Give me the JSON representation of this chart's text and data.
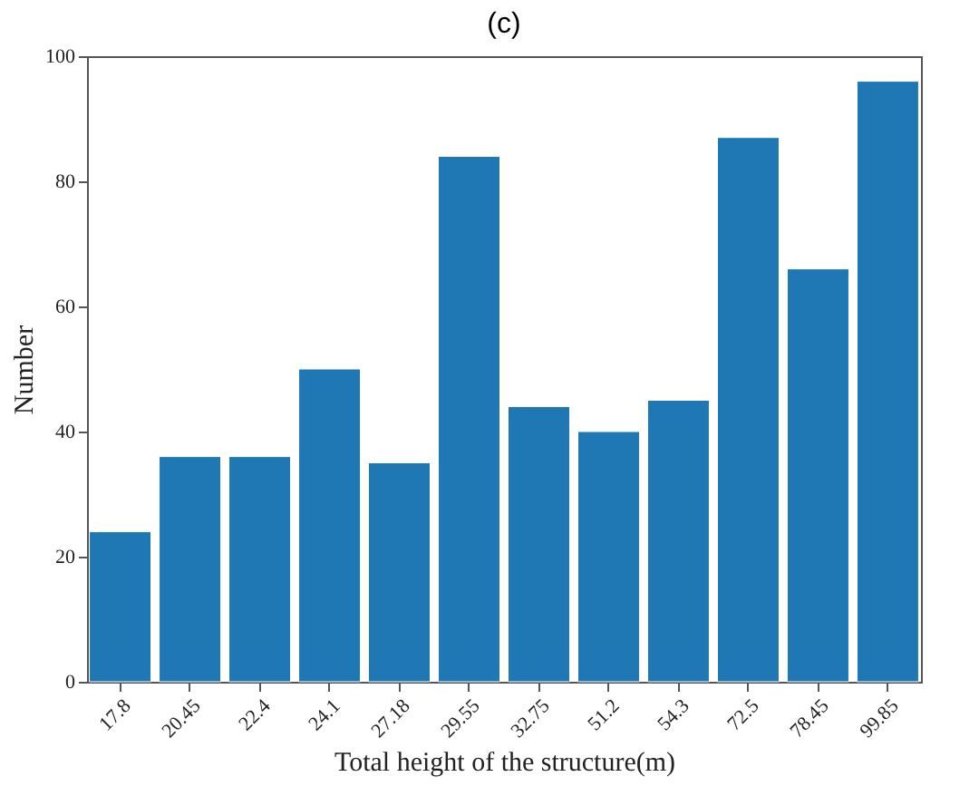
{
  "chart_data": {
    "type": "bar",
    "title": "(c)",
    "xlabel": "Total height of the structure(m)",
    "ylabel": "Number",
    "categories": [
      "17.8",
      "20.45",
      "22.4",
      "24.1",
      "27.18",
      "29.55",
      "32.75",
      "51.2",
      "54.3",
      "72.5",
      "78.45",
      "99.85"
    ],
    "values": [
      24,
      36,
      36,
      50,
      35,
      84,
      44,
      40,
      45,
      87,
      66,
      96
    ],
    "color": "#1f77b4",
    "ylim": [
      0,
      100
    ],
    "yticks": [
      0,
      20,
      40,
      60,
      80,
      100
    ],
    "grid": false
  }
}
